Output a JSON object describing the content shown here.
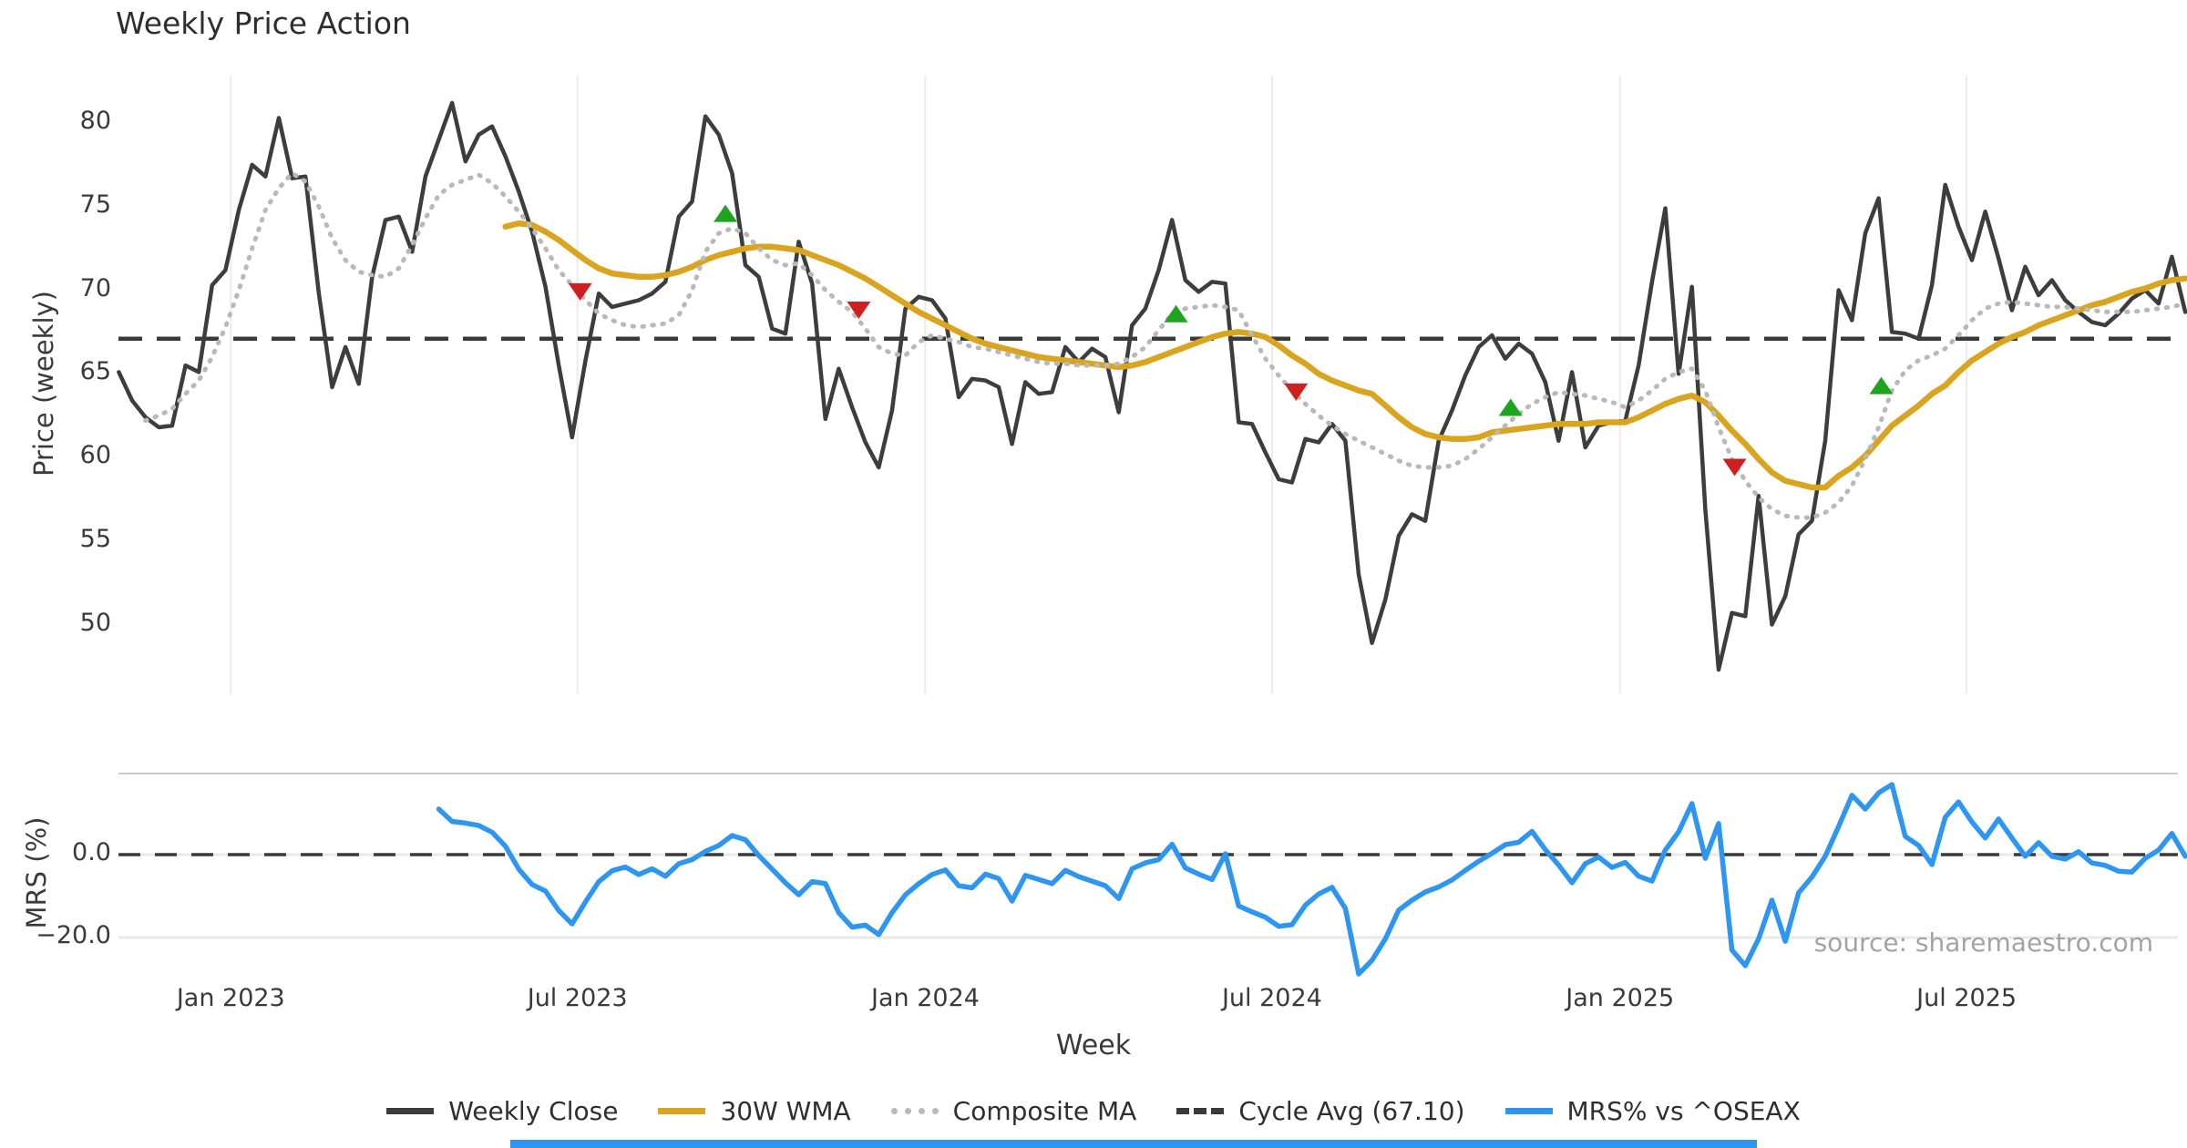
{
  "title": "Weekly Price Action",
  "source_note": "source: sharemaestro.com",
  "colors": {
    "close": "#3d3d3d",
    "wma": "#d9a521",
    "composite": "#b9b9b9",
    "cycle": "#3a3a3a",
    "mrs": "#2e96f0",
    "buy": "#1fa41f",
    "sell": "#ce2020",
    "grid": "#ebebeb",
    "panel_border": "#c9c9c9",
    "zero_grid": "#e9e9e9",
    "text": "#3a3a3a",
    "muted": "#a3a3a3",
    "background": "#ffffff",
    "accent_bar": "#2e96f0"
  },
  "price_axis": {
    "label": "Price (weekly)",
    "ticks": [
      80,
      75,
      70,
      65,
      60,
      55,
      50
    ]
  },
  "mrs_axis": {
    "label": "MRS (%)",
    "ticks": [
      {
        "label": "0.0",
        "value": 0
      },
      {
        "label": "−20.0",
        "value": -20
      }
    ]
  },
  "x_axis": {
    "label": "Week",
    "ticks": [
      {
        "label": "Jan 2023",
        "week": 8.4
      },
      {
        "label": "Jul 2023",
        "week": 34.4
      },
      {
        "label": "Jan 2024",
        "week": 60.5
      },
      {
        "label": "Jul 2024",
        "week": 86.5
      },
      {
        "label": "Jan 2025",
        "week": 112.6
      },
      {
        "label": "Jul 2025",
        "week": 138.6
      }
    ]
  },
  "legend": [
    {
      "label": "Weekly Close",
      "style": "solid",
      "color": "#3d3d3d"
    },
    {
      "label": "30W WMA",
      "style": "solid",
      "color": "#d9a521"
    },
    {
      "label": "Composite MA",
      "style": "dotted",
      "color": "#b9b9b9"
    },
    {
      "label": "Cycle Avg (67.10)",
      "style": "dashed",
      "color": "#3a3a3a"
    },
    {
      "label": "MRS% vs ^OSEAX",
      "style": "solid",
      "color": "#2e96f0"
    }
  ],
  "chart_data": {
    "type": "line",
    "title": "Weekly Price Action",
    "xlabel": "Week",
    "ylabel_top": "Price (weekly)",
    "ylabel_bottom": "MRS (%)",
    "x_unit": "weekly index, week 0 ≈ early Nov 2022, ticks every 26 weeks",
    "n_weeks": 156,
    "price_ylim": [
      46,
      83
    ],
    "mrs_ylim": [
      -30,
      20
    ],
    "grid": "vertical only (top panel), horizontal 0/-20 (bottom panel)",
    "legend_position": "bottom center",
    "cycle_avg": 67.1,
    "series": [
      {
        "name": "Weekly Close",
        "panel": "price",
        "style": "solid",
        "color": "#3d3d3d",
        "start_week": 0,
        "values": [
          65.1,
          63.4,
          62.4,
          61.8,
          61.9,
          65.5,
          65.1,
          70.3,
          71.2,
          74.8,
          77.5,
          76.8,
          80.3,
          76.7,
          76.8,
          69.8,
          64.2,
          66.6,
          64.4,
          70.8,
          74.2,
          74.4,
          72.3,
          76.8,
          79.0,
          81.2,
          77.7,
          79.3,
          79.8,
          78.0,
          75.9,
          73.5,
          70.2,
          65.5,
          61.2,
          65.8,
          69.8,
          69.0,
          69.2,
          69.4,
          69.8,
          70.5,
          74.4,
          75.3,
          80.4,
          79.3,
          77.0,
          71.5,
          70.8,
          67.7,
          67.4,
          72.9,
          70.4,
          62.3,
          65.3,
          63.0,
          60.9,
          59.4,
          62.8,
          68.9,
          69.6,
          69.4,
          68.3,
          63.6,
          64.7,
          64.6,
          64.2,
          60.8,
          64.5,
          63.8,
          63.9,
          66.6,
          65.7,
          66.5,
          66.0,
          62.7,
          67.9,
          68.9,
          71.2,
          74.2,
          70.6,
          69.9,
          70.5,
          70.4,
          62.1,
          62.0,
          60.3,
          58.7,
          58.5,
          61.1,
          60.9,
          62.0,
          61.0,
          53.0,
          48.9,
          51.5,
          55.3,
          56.6,
          56.2,
          61.0,
          62.8,
          64.9,
          66.6,
          67.3,
          65.9,
          66.8,
          66.2,
          64.5,
          61.0,
          65.1,
          60.6,
          61.9,
          62.1,
          62.2,
          65.5,
          70.5,
          74.9,
          65.0,
          70.2,
          56.9,
          47.3,
          50.7,
          50.5,
          57.7,
          50.0,
          51.7,
          55.4,
          56.2,
          61.0,
          70.0,
          68.2,
          73.4,
          75.5,
          67.5,
          67.4,
          67.1,
          70.3,
          76.3,
          73.8,
          71.8,
          74.7,
          71.9,
          68.8,
          71.4,
          69.7,
          70.6,
          69.4,
          68.7,
          68.1,
          67.9,
          68.6,
          69.5,
          70.0,
          69.2,
          72.0,
          68.7
        ]
      },
      {
        "name": "30W WMA",
        "panel": "price",
        "style": "solid",
        "color": "#d9a521",
        "start_week": 29,
        "values": [
          73.8,
          74.0,
          73.9,
          73.5,
          73.0,
          72.4,
          71.8,
          71.3,
          71.0,
          70.9,
          70.8,
          70.8,
          70.9,
          71.1,
          71.4,
          71.8,
          72.1,
          72.3,
          72.5,
          72.6,
          72.6,
          72.5,
          72.4,
          72.1,
          71.8,
          71.5,
          71.1,
          70.7,
          70.2,
          69.7,
          69.2,
          68.7,
          68.3,
          67.9,
          67.5,
          67.1,
          66.8,
          66.6,
          66.4,
          66.2,
          66.0,
          65.9,
          65.8,
          65.7,
          65.6,
          65.5,
          65.4,
          65.5,
          65.7,
          66.0,
          66.3,
          66.6,
          66.9,
          67.2,
          67.4,
          67.5,
          67.4,
          67.2,
          66.7,
          66.1,
          65.6,
          65.0,
          64.6,
          64.3,
          64.0,
          63.8,
          63.1,
          62.4,
          61.8,
          61.4,
          61.2,
          61.1,
          61.1,
          61.2,
          61.5,
          61.6,
          61.7,
          61.8,
          61.9,
          62.0,
          62.0,
          62.0,
          62.1,
          62.1,
          62.1,
          62.4,
          62.8,
          63.2,
          63.5,
          63.7,
          63.3,
          62.5,
          61.6,
          60.8,
          59.9,
          59.1,
          58.6,
          58.4,
          58.2,
          58.2,
          58.9,
          59.4,
          60.1,
          61.0,
          61.9,
          62.5,
          63.1,
          63.8,
          64.3,
          65.1,
          65.8,
          66.3,
          66.8,
          67.2,
          67.5,
          67.9,
          68.2,
          68.5,
          68.8,
          69.1,
          69.3,
          69.6,
          69.9,
          70.1,
          70.4,
          70.6,
          70.7
        ]
      },
      {
        "name": "Composite MA",
        "panel": "price",
        "style": "dotted",
        "color": "#b9b9b9",
        "start_week": 2,
        "values": [
          62.2,
          62.5,
          62.9,
          63.8,
          64.6,
          66.0,
          67.8,
          70.0,
          72.5,
          74.8,
          76.1,
          77.0,
          76.5,
          75.0,
          73.1,
          71.8,
          71.1,
          70.9,
          70.8,
          71.3,
          72.7,
          74.3,
          75.7,
          76.3,
          76.6,
          76.9,
          76.4,
          75.6,
          74.7,
          73.7,
          72.5,
          71.2,
          70.3,
          69.4,
          68.6,
          68.2,
          67.9,
          67.8,
          67.9,
          68.0,
          68.5,
          70.0,
          72.3,
          73.4,
          73.7,
          73.4,
          72.5,
          71.8,
          71.5,
          71.6,
          70.9,
          70.0,
          69.3,
          68.7,
          67.7,
          66.6,
          66.2,
          66.1,
          66.9,
          67.3,
          67.1,
          66.9,
          66.6,
          66.5,
          66.3,
          66.1,
          65.9,
          65.7,
          65.6,
          65.6,
          65.5,
          65.5,
          65.5,
          65.6,
          66.0,
          66.6,
          67.6,
          68.6,
          68.9,
          69.0,
          69.1,
          69.0,
          68.8,
          67.3,
          65.9,
          64.9,
          64.0,
          63.2,
          62.5,
          61.9,
          61.4,
          61.0,
          60.6,
          60.2,
          59.8,
          59.5,
          59.4,
          59.4,
          59.5,
          59.9,
          60.5,
          61.2,
          61.9,
          62.6,
          63.2,
          63.6,
          63.9,
          63.8,
          63.7,
          63.5,
          63.3,
          63.0,
          63.4,
          64.0,
          64.7,
          65.1,
          65.3,
          64.0,
          61.8,
          59.9,
          58.6,
          57.6,
          56.9,
          56.5,
          56.4,
          56.4,
          56.7,
          57.3,
          58.3,
          59.9,
          61.8,
          64.0,
          65.2,
          65.8,
          66.1,
          66.5,
          67.3,
          68.2,
          68.9,
          69.2,
          69.3,
          69.2,
          69.1,
          69.0,
          69.0,
          68.9,
          68.8,
          68.7,
          68.7,
          68.7,
          68.8,
          68.9,
          69.0,
          69.2
        ]
      },
      {
        "name": "MRS% vs ^OSEAX",
        "panel": "mrs",
        "style": "solid",
        "color": "#2e96f0",
        "start_week": 24,
        "values": [
          11.0,
          8.0,
          7.6,
          7.0,
          5.4,
          2.0,
          -3.5,
          -7.2,
          -8.8,
          -13.5,
          -16.7,
          -11.4,
          -6.5,
          -3.9,
          -3.0,
          -4.8,
          -3.4,
          -5.2,
          -2.2,
          -1.2,
          0.8,
          2.2,
          4.6,
          3.6,
          -0.2,
          -3.5,
          -6.8,
          -9.7,
          -6.5,
          -7.0,
          -14.0,
          -17.5,
          -17.0,
          -19.3,
          -14.0,
          -9.7,
          -7.0,
          -4.8,
          -3.7,
          -7.5,
          -8.0,
          -4.7,
          -5.8,
          -11.2,
          -5.0,
          -6.0,
          -7.0,
          -3.8,
          -5.3,
          -6.4,
          -7.5,
          -10.6,
          -3.4,
          -2.0,
          -1.2,
          2.5,
          -3.2,
          -4.7,
          -6.0,
          0.2,
          -12.4,
          -13.8,
          -15.1,
          -17.3,
          -16.9,
          -12.2,
          -9.5,
          -7.9,
          -13.0,
          -28.8,
          -25.5,
          -20.3,
          -13.4,
          -11.0,
          -9.0,
          -7.8,
          -6.1,
          -3.8,
          -1.6,
          0.3,
          2.4,
          3.0,
          5.6,
          1.2,
          -2.5,
          -6.8,
          -2.2,
          -0.6,
          -3.1,
          -1.9,
          -5.2,
          -6.4,
          1.1,
          5.5,
          12.3,
          -0.9,
          7.5,
          -23.0,
          -26.8,
          -20.3,
          -11.0,
          -20.9,
          -9.2,
          -5.4,
          -0.4,
          6.8,
          14.3,
          11.0,
          14.9,
          16.9,
          4.4,
          2.2,
          -2.4,
          9.0,
          12.7,
          7.9,
          4.0,
          8.6,
          4.0,
          -0.4,
          2.9,
          -0.4,
          -1.1,
          0.7,
          -2.0,
          -2.6,
          -4.0,
          -4.2,
          -0.9,
          1.1,
          5.1,
          -0.4
        ]
      }
    ],
    "markers": {
      "sell": [
        {
          "week": 34.6,
          "price": 69.9
        },
        {
          "week": 55.5,
          "price": 68.8
        },
        {
          "week": 88.3,
          "price": 63.9
        },
        {
          "week": 121.2,
          "price": 59.4
        }
      ],
      "buy": [
        {
          "week": 45.5,
          "price": 74.6
        },
        {
          "week": 79.3,
          "price": 68.6
        },
        {
          "week": 104.4,
          "price": 63.0
        },
        {
          "week": 132.2,
          "price": 64.3
        }
      ]
    }
  }
}
